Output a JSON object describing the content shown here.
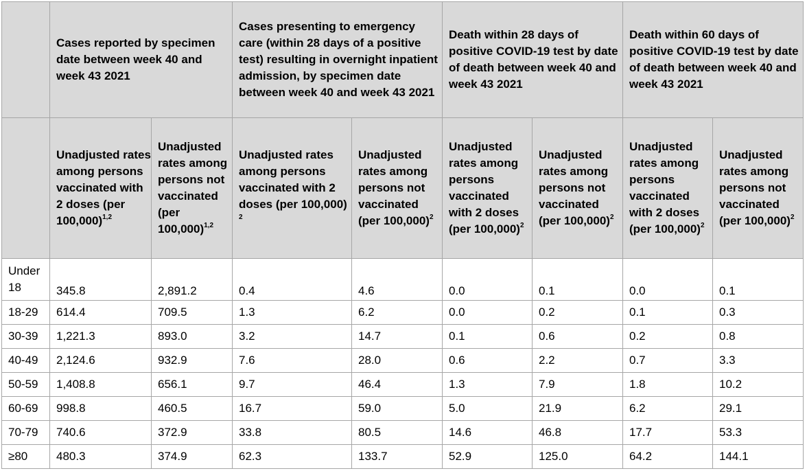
{
  "group_headers": [
    "Cases reported by specimen date between week 40 and week 43 2021",
    "Cases presenting to emergency care (within 28 days of a positive test) resulting in overnight inpatient admission, by specimen date between week 40 and week 43 2021",
    "Death within 28 days of positive COVID-19 test by date of death between week 40 and week 43 2021",
    "Death within 60 days of positive COVID-19 test by date of death between week 40 and week 43 2021"
  ],
  "sub_headers": [
    {
      "text": "Unadjusted rates among persons vaccinated with 2 doses (per 100,000)",
      "sup": "1,2"
    },
    {
      "text": "Unadjusted rates among persons not vaccinated (per 100,000)",
      "sup": "1,2"
    },
    {
      "text": "Unadjusted rates among persons vaccinated with 2 doses (per 100,000) ",
      "sup": "2"
    },
    {
      "text": "Unadjusted rates among persons not vaccinated (per 100,000)",
      "sup": "2"
    },
    {
      "text": "Unadjusted rates among persons vaccinated with 2 doses (per 100,000)",
      "sup": "2"
    },
    {
      "text": "Unadjusted rates among persons not vaccinated (per 100,000)",
      "sup": "2"
    },
    {
      "text": "Unadjusted rates among persons vaccinated with 2 doses (per 100,000)",
      "sup": "2"
    },
    {
      "text": "Unadjusted rates among persons not vaccinated (per 100,000)",
      "sup": "2"
    }
  ],
  "rows": [
    {
      "age": "Under 18",
      "values": [
        "345.8",
        "2,891.2",
        "0.4",
        "4.6",
        "0.0",
        "0.1",
        "0.0",
        "0.1"
      ]
    },
    {
      "age": "18-29",
      "values": [
        "614.4",
        "709.5",
        "1.3",
        "6.2",
        "0.0",
        "0.2",
        "0.1",
        "0.3"
      ]
    },
    {
      "age": "30-39",
      "values": [
        "1,221.3",
        "893.0",
        "3.2",
        "14.7",
        "0.1",
        "0.6",
        "0.2",
        "0.8"
      ]
    },
    {
      "age": "40-49",
      "values": [
        "2,124.6",
        "932.9",
        "7.6",
        "28.0",
        "0.6",
        "2.2",
        "0.7",
        "3.3"
      ]
    },
    {
      "age": "50-59",
      "values": [
        "1,408.8",
        "656.1",
        "9.7",
        "46.4",
        "1.3",
        "7.9",
        "1.8",
        "10.2"
      ]
    },
    {
      "age": "60-69",
      "values": [
        "998.8",
        "460.5",
        "16.7",
        "59.0",
        "5.0",
        "21.9",
        "6.2",
        "29.1"
      ]
    },
    {
      "age": "70-79",
      "values": [
        "740.6",
        "372.9",
        "33.8",
        "80.5",
        "14.6",
        "46.8",
        "17.7",
        "53.3"
      ]
    },
    {
      "age": "≥80",
      "values": [
        "480.3",
        "374.9",
        "62.3",
        "133.7",
        "52.9",
        "125.0",
        "64.2",
        "144.1"
      ]
    }
  ]
}
